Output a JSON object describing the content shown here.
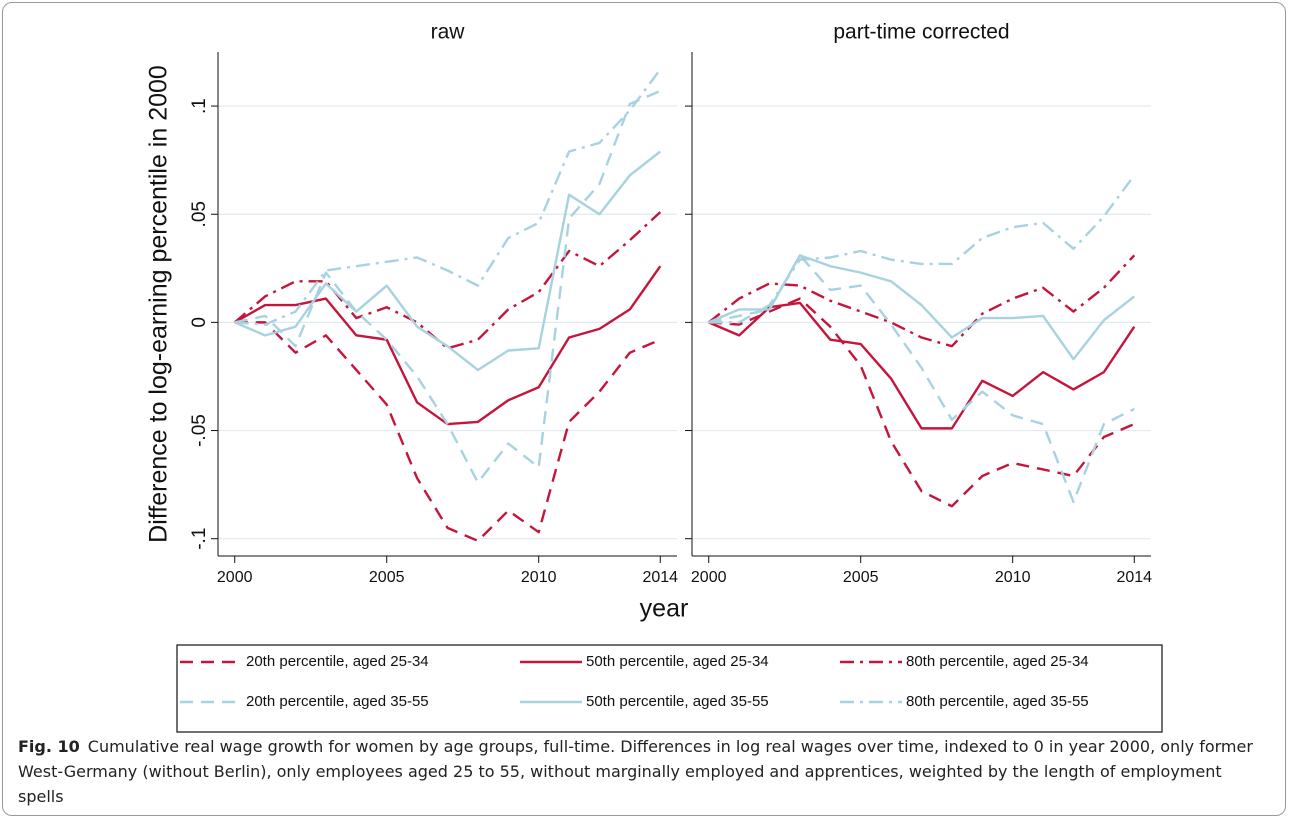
{
  "chart_data": [
    {
      "type": "line",
      "title": "raw",
      "xlabel": "year",
      "ylabel": "Difference to log-earning percentile in 2000",
      "x": [
        2000,
        2001,
        2002,
        2003,
        2004,
        2005,
        2006,
        2007,
        2008,
        2009,
        2010,
        2011,
        2012,
        2013,
        2014
      ],
      "xlim": [
        1999.45,
        2014.55
      ],
      "xticks": [
        2000,
        2005,
        2010,
        2014
      ],
      "ylim": [
        -0.108,
        0.125
      ],
      "yticks": [
        {
          "value": -0.1,
          "label": "-.1"
        },
        {
          "value": -0.05,
          "label": "-.05"
        },
        0,
        {
          "value": 0.05,
          "label": ".05"
        },
        {
          "value": 0.1,
          "label": ".1"
        }
      ],
      "grid": true,
      "series": [
        {
          "name": "20th percentile, aged 25-34",
          "color": "#c4163c",
          "dash": "dashed",
          "values": [
            0,
            0,
            -0.014,
            -0.006,
            -0.022,
            -0.038,
            -0.072,
            -0.095,
            -0.101,
            -0.087,
            -0.097,
            -0.046,
            -0.032,
            -0.014,
            -0.008
          ]
        },
        {
          "name": "50th percentile, aged 25-34",
          "color": "#c4163c",
          "dash": "solid",
          "values": [
            0,
            0.008,
            0.008,
            0.011,
            -0.006,
            -0.008,
            -0.037,
            -0.047,
            -0.046,
            -0.036,
            -0.03,
            -0.007,
            -0.003,
            0.006,
            0.026
          ]
        },
        {
          "name": "80th percentile, aged 25-34",
          "color": "#c4163c",
          "dash": "dashdot",
          "values": [
            0,
            0.012,
            0.019,
            0.019,
            0.002,
            0.007,
            0,
            -0.012,
            -0.008,
            0.006,
            0.014,
            0.033,
            0.026,
            0.038,
            0.051
          ]
        },
        {
          "name": "20th percentile, aged 35-55",
          "color": "#a7d2df",
          "dash": "dashed",
          "values": [
            0,
            0.003,
            -0.011,
            0.023,
            0.005,
            -0.008,
            -0.025,
            -0.047,
            -0.074,
            -0.056,
            -0.067,
            0.048,
            0.064,
            0.101,
            0.107
          ]
        },
        {
          "name": "50th percentile, aged 35-55",
          "color": "#a7d2df",
          "dash": "solid",
          "values": [
            0,
            -0.006,
            -0.002,
            0.018,
            0.005,
            0.017,
            -0.002,
            -0.011,
            -0.022,
            -0.013,
            -0.012,
            0.059,
            0.05,
            0.068,
            0.079
          ]
        },
        {
          "name": "80th percentile, aged 35-55",
          "color": "#a7d2df",
          "dash": "dashdot",
          "values": [
            0,
            -0.001,
            0.005,
            0.024,
            0.026,
            0.028,
            0.03,
            0.024,
            0.017,
            0.039,
            0.046,
            0.079,
            0.083,
            0.098,
            0.117
          ]
        }
      ]
    },
    {
      "type": "line",
      "title": "part-time corrected",
      "x": [
        2000,
        2001,
        2002,
        2003,
        2004,
        2005,
        2006,
        2007,
        2008,
        2009,
        2010,
        2011,
        2012,
        2013,
        2014
      ],
      "xlim": [
        1999.45,
        2014.55
      ],
      "xticks": [
        2000,
        2005,
        2010,
        2014
      ],
      "ylim": [
        -0.108,
        0.125
      ],
      "yticks": [
        -0.1,
        -0.05,
        0,
        0.05,
        0.1
      ],
      "grid": true,
      "series": [
        {
          "color": "#c4163c",
          "dash": "dashed",
          "values": [
            0,
            -0.001,
            0.005,
            0.011,
            -0.002,
            -0.02,
            -0.055,
            -0.078,
            -0.085,
            -0.071,
            -0.065,
            -0.068,
            -0.071,
            -0.053,
            -0.047
          ]
        },
        {
          "color": "#c4163c",
          "dash": "solid",
          "values": [
            0,
            -0.006,
            0.007,
            0.009,
            -0.008,
            -0.01,
            -0.026,
            -0.049,
            -0.049,
            -0.027,
            -0.034,
            -0.023,
            -0.031,
            -0.023,
            -0.002
          ]
        },
        {
          "color": "#c4163c",
          "dash": "dashdot",
          "values": [
            0,
            0.011,
            0.018,
            0.017,
            0.01,
            0.005,
            0,
            -0.007,
            -0.011,
            0.004,
            0.011,
            0.016,
            0.005,
            0.016,
            0.031
          ]
        },
        {
          "color": "#a7d2df",
          "dash": "dashed",
          "values": [
            0,
            0.003,
            0.006,
            0.031,
            0.015,
            0.017,
            -0.001,
            -0.021,
            -0.045,
            -0.032,
            -0.043,
            -0.047,
            -0.083,
            -0.047,
            -0.04
          ]
        },
        {
          "color": "#a7d2df",
          "dash": "solid",
          "values": [
            0,
            0.006,
            0.006,
            0.031,
            0.026,
            0.023,
            0.019,
            0.008,
            -0.007,
            0.002,
            0.002,
            0.003,
            -0.017,
            0.001,
            0.012
          ]
        },
        {
          "color": "#a7d2df",
          "dash": "dashdot",
          "values": [
            0,
            0,
            0.008,
            0.029,
            0.03,
            0.033,
            0.029,
            0.027,
            0.027,
            0.039,
            0.044,
            0.046,
            0.034,
            0.049,
            0.068
          ]
        }
      ]
    }
  ],
  "caption": {
    "label": "Fig. 10",
    "text": "Cumulative real wage growth for women by age groups, full-time. Differences in log real wages over time, indexed to 0 in year 2000, only former West-Germany (without Berlin), only employees aged 25 to 55, without marginally employed and apprentices, weighted by the length of employment spells"
  }
}
